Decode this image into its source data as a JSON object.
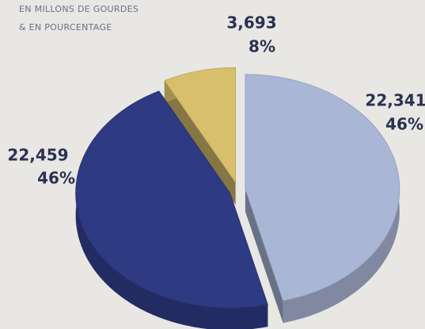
{
  "chart_data": {
    "type": "pie3d",
    "subtitle_lines": [
      "EN MILLONS DE GOURDES",
      "& EN POURCENTAGE"
    ],
    "values": [
      22341,
      22459,
      3693
    ],
    "value_labels": [
      "22,341",
      "22,459",
      "3,693"
    ],
    "percent_labels": [
      "46%",
      "46%",
      "8%"
    ],
    "colors": [
      "#aab6d6",
      "#2e3a82",
      "#d8bf6c"
    ]
  }
}
